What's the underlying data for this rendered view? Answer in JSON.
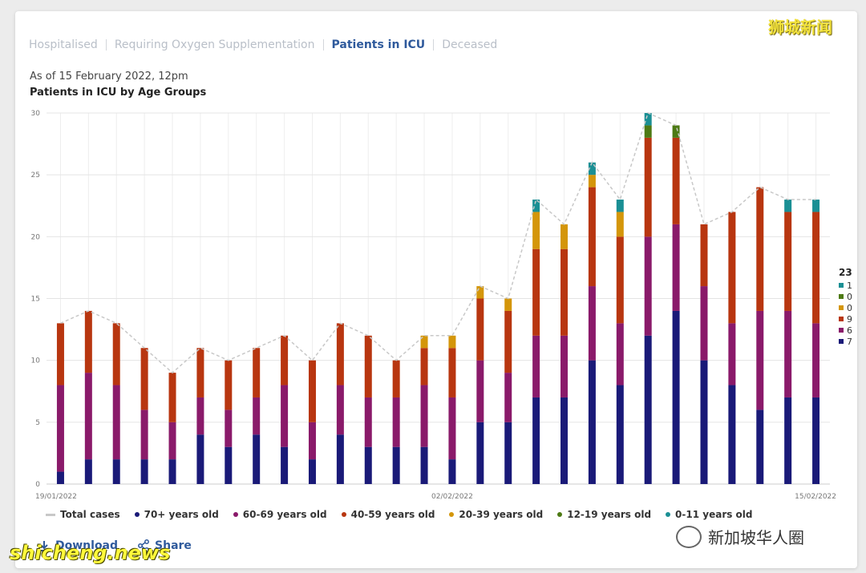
{
  "tabs": [
    {
      "label": "Hospitalised",
      "active": false
    },
    {
      "label": "Requiring Oxygen Supplementation",
      "active": false
    },
    {
      "label": "Patients in ICU",
      "active": true
    },
    {
      "label": "Deceased",
      "active": false
    }
  ],
  "as_of": "As of 15 February 2022, 12pm",
  "chart_title": "Patients in ICU by Age Groups",
  "chart_data": {
    "type": "bar",
    "stacked": true,
    "title": "Patients in ICU by Age Groups",
    "xlabel": "",
    "ylabel": "",
    "ylim": [
      0,
      30
    ],
    "yticks": [
      0,
      5,
      10,
      15,
      20,
      25,
      30
    ],
    "x_tick_labels": [
      {
        "index": 0,
        "label": "19/01/2022"
      },
      {
        "index": 14,
        "label": "02/02/2022"
      },
      {
        "index": 27,
        "label": "15/02/2022"
      }
    ],
    "categories": [
      "19/01/2022",
      "20/01/2022",
      "21/01/2022",
      "22/01/2022",
      "23/01/2022",
      "24/01/2022",
      "25/01/2022",
      "26/01/2022",
      "27/01/2022",
      "28/01/2022",
      "29/01/2022",
      "30/01/2022",
      "31/01/2022",
      "01/02/2022",
      "02/02/2022",
      "03/02/2022",
      "04/02/2022",
      "05/02/2022",
      "06/02/2022",
      "07/02/2022",
      "08/02/2022",
      "09/02/2022",
      "10/02/2022",
      "11/02/2022",
      "12/02/2022",
      "13/02/2022",
      "14/02/2022",
      "15/02/2022"
    ],
    "series": [
      {
        "name": "70+ years old",
        "color": "#1a1a78",
        "values": [
          1,
          2,
          2,
          2,
          2,
          4,
          3,
          4,
          3,
          2,
          4,
          3,
          3,
          3,
          2,
          5,
          5,
          7,
          7,
          10,
          8,
          12,
          14,
          10,
          8,
          6,
          7,
          7
        ]
      },
      {
        "name": "60-69 years old",
        "color": "#8a1a6a",
        "values": [
          7,
          7,
          6,
          4,
          3,
          3,
          3,
          3,
          5,
          3,
          4,
          4,
          4,
          5,
          5,
          5,
          4,
          5,
          5,
          6,
          5,
          8,
          7,
          6,
          5,
          8,
          7,
          6
        ]
      },
      {
        "name": "40-59 years old",
        "color": "#b83610",
        "values": [
          5,
          5,
          5,
          5,
          4,
          4,
          4,
          4,
          4,
          5,
          5,
          5,
          3,
          3,
          4,
          5,
          5,
          7,
          7,
          8,
          7,
          8,
          7,
          5,
          9,
          10,
          8,
          9
        ]
      },
      {
        "name": "20-39 years old",
        "color": "#d4960a",
        "values": [
          0,
          0,
          0,
          0,
          0,
          0,
          0,
          0,
          0,
          0,
          0,
          0,
          0,
          1,
          1,
          1,
          1,
          3,
          2,
          1,
          2,
          0,
          0,
          0,
          0,
          0,
          0,
          0
        ]
      },
      {
        "name": "12-19 years old",
        "color": "#4d7a14",
        "values": [
          0,
          0,
          0,
          0,
          0,
          0,
          0,
          0,
          0,
          0,
          0,
          0,
          0,
          0,
          0,
          0,
          0,
          0,
          0,
          0,
          0,
          1,
          1,
          0,
          0,
          0,
          0,
          0
        ]
      },
      {
        "name": "0-11 years old",
        "color": "#1a8f94",
        "values": [
          0,
          0,
          0,
          0,
          0,
          0,
          0,
          0,
          0,
          0,
          0,
          0,
          0,
          0,
          0,
          0,
          0,
          1,
          0,
          1,
          1,
          1,
          0,
          0,
          0,
          0,
          1,
          1
        ]
      }
    ],
    "total_series": {
      "name": "Total cases",
      "color": "#c8c8c8",
      "values": [
        13,
        14,
        13,
        11,
        9,
        11,
        10,
        11,
        12,
        10,
        13,
        12,
        10,
        12,
        12,
        16,
        15,
        23,
        21,
        26,
        23,
        30,
        29,
        21,
        22,
        24,
        23,
        23
      ]
    },
    "legend_position": "bottom",
    "grid": true
  },
  "tooltip": {
    "total": "23",
    "rows": [
      {
        "value": "1",
        "color": "#1a8f94"
      },
      {
        "value": "0",
        "color": "#4d7a14"
      },
      {
        "value": "0",
        "color": "#d4960a"
      },
      {
        "value": "9",
        "color": "#b83610"
      },
      {
        "value": "6",
        "color": "#8a1a6a"
      },
      {
        "value": "7",
        "color": "#1a1a78"
      }
    ]
  },
  "actions": {
    "download": "Download",
    "share": "Share"
  },
  "watermarks": {
    "top_right": "狮城新闻",
    "bottom_left": "shicheng.news",
    "bottom_right": "新加坡华人圈"
  }
}
